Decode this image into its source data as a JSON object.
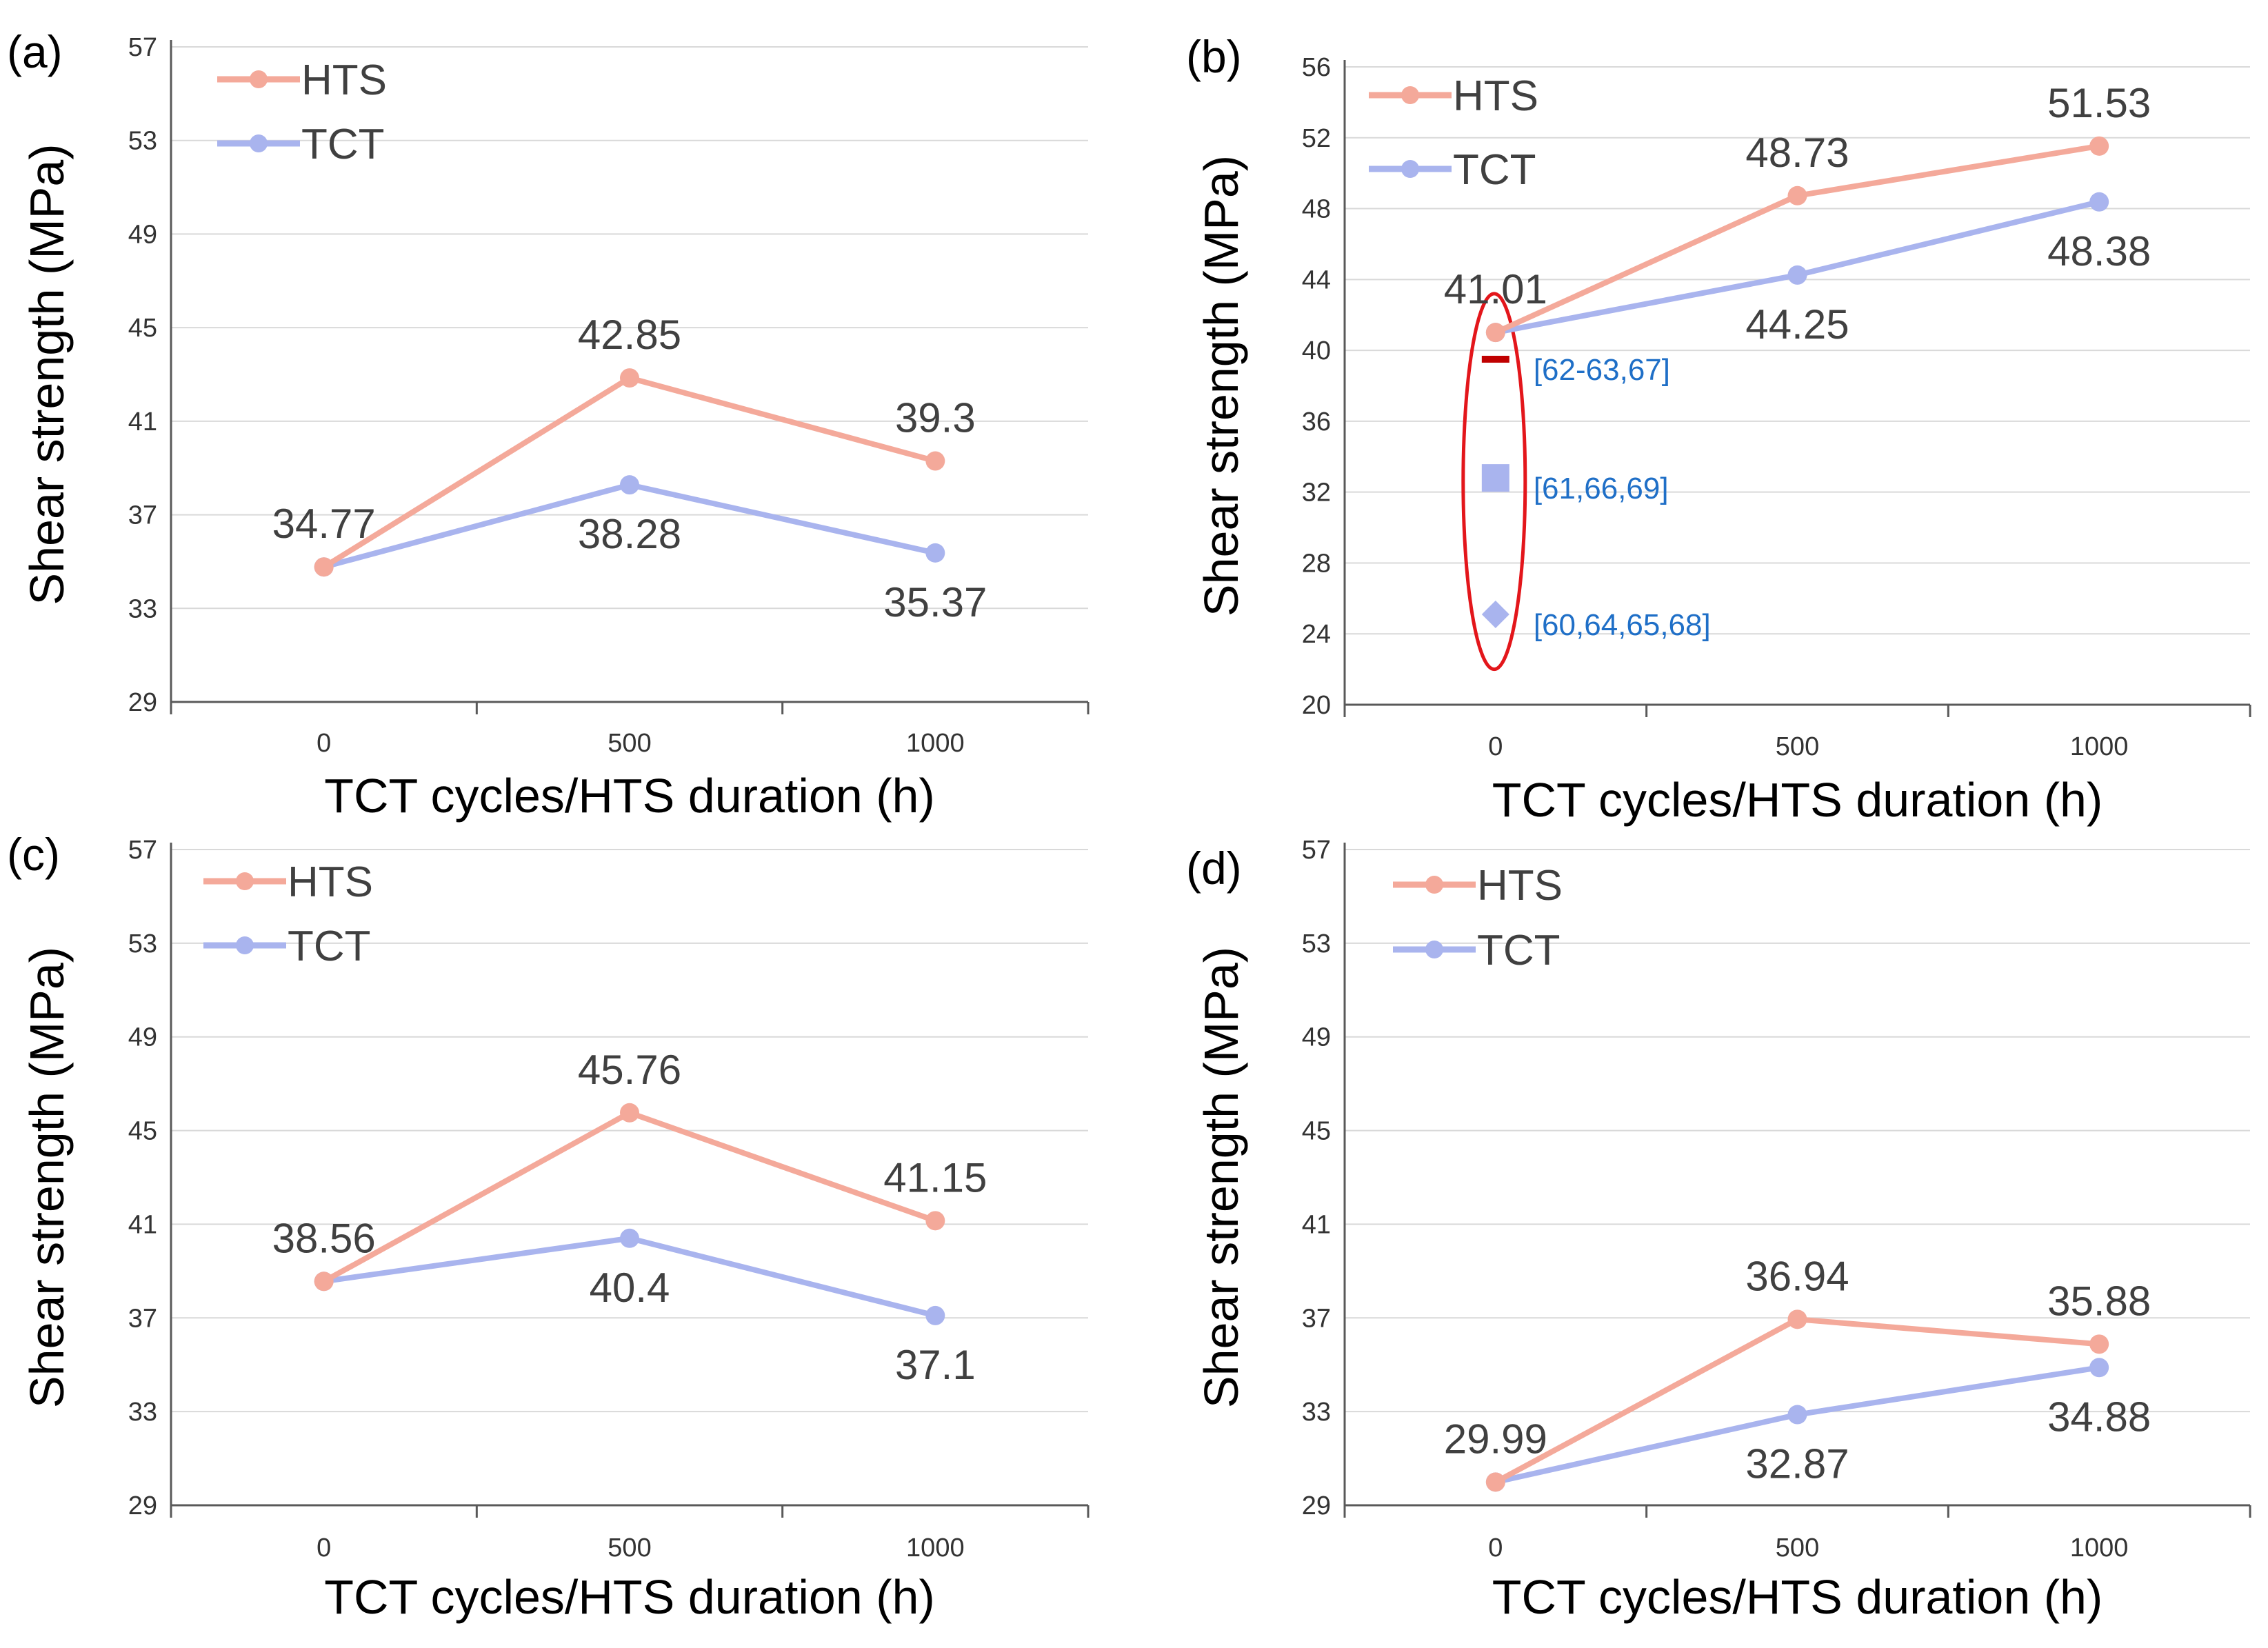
{
  "colors": {
    "hts": "#f4a99a",
    "tct": "#a9b4ee",
    "grid": "#d9d9d9",
    "axis": "#595959",
    "ellipse": "#e3161b",
    "ref_text": "#1f6fc7",
    "ref_dash": "#c00000"
  },
  "chart_data": [
    {
      "panel_label": "(a)",
      "type": "line",
      "xlabel": "TCT cycles/HTS duration (h)",
      "ylabel": "Shear strength (MPa)",
      "categories": [
        "0",
        "500",
        "1000"
      ],
      "ylim": [
        29,
        57
      ],
      "yticks": [
        29,
        33,
        37,
        41,
        45,
        49,
        53,
        57
      ],
      "legend_position": "top-left",
      "series": [
        {
          "name": "HTS",
          "color_key": "hts",
          "values": [
            34.77,
            42.85,
            39.3
          ],
          "labels": [
            "34.77",
            "42.85",
            "39.3"
          ],
          "label_pos": [
            "above",
            "above",
            "above"
          ]
        },
        {
          "name": "TCT",
          "color_key": "tct",
          "values": [
            34.77,
            38.28,
            35.37
          ],
          "labels": [
            "",
            "38.28",
            "35.37"
          ],
          "label_pos": [
            "below",
            "below",
            "below"
          ]
        }
      ]
    },
    {
      "panel_label": "(b)",
      "type": "line",
      "xlabel": "TCT cycles/HTS duration (h)",
      "ylabel": "Shear strength (MPa)",
      "categories": [
        "0",
        "500",
        "1000"
      ],
      "ylim": [
        20,
        56
      ],
      "yticks": [
        20,
        24,
        28,
        32,
        36,
        40,
        44,
        48,
        52,
        56
      ],
      "legend_position": "top-left",
      "series": [
        {
          "name": "HTS",
          "color_key": "hts",
          "values": [
            41.01,
            48.73,
            51.53
          ],
          "labels": [
            "41.01",
            "48.73",
            "51.53"
          ],
          "label_pos": [
            "above",
            "above",
            "above"
          ]
        },
        {
          "name": "TCT",
          "color_key": "tct",
          "values": [
            41.01,
            44.25,
            48.38
          ],
          "labels": [
            "",
            "44.25",
            "48.38"
          ],
          "label_pos": [
            "below",
            "below",
            "below"
          ]
        }
      ],
      "reference_points": [
        {
          "marker": "dash",
          "value": 39.5,
          "label": "[62-63,67]"
        },
        {
          "marker": "square",
          "value": 32.8,
          "label": "[61,66,69]"
        },
        {
          "marker": "diamond",
          "value": 25.1,
          "label": "[60,64,65,68]"
        }
      ]
    },
    {
      "panel_label": "(c)",
      "type": "line",
      "xlabel": "TCT cycles/HTS duration (h)",
      "ylabel": "Shear strength (MPa)",
      "categories": [
        "0",
        "500",
        "1000"
      ],
      "ylim": [
        29,
        57
      ],
      "yticks": [
        29,
        33,
        37,
        41,
        45,
        49,
        53,
        57
      ],
      "legend_position": "top-left",
      "series": [
        {
          "name": "HTS",
          "color_key": "hts",
          "values": [
            38.56,
            45.76,
            41.15
          ],
          "labels": [
            "38.56",
            "45.76",
            "41.15"
          ],
          "label_pos": [
            "above",
            "above",
            "above"
          ]
        },
        {
          "name": "TCT",
          "color_key": "tct",
          "values": [
            38.56,
            40.4,
            37.1
          ],
          "labels": [
            "",
            "40.4",
            "37.1"
          ],
          "label_pos": [
            "below",
            "below",
            "below"
          ]
        }
      ]
    },
    {
      "panel_label": "(d)",
      "type": "line",
      "xlabel": "TCT cycles/HTS duration (h)",
      "ylabel": "Shear strength (MPa)",
      "categories": [
        "0",
        "500",
        "1000"
      ],
      "ylim": [
        29,
        57
      ],
      "yticks": [
        29,
        33,
        37,
        41,
        45,
        49,
        53,
        57
      ],
      "legend_position": "top-left",
      "series": [
        {
          "name": "HTS",
          "color_key": "hts",
          "values": [
            29.99,
            36.94,
            35.88
          ],
          "labels": [
            "29.99",
            "36.94",
            "35.88"
          ],
          "label_pos": [
            "above",
            "above",
            "above"
          ]
        },
        {
          "name": "TCT",
          "color_key": "tct",
          "values": [
            29.99,
            32.87,
            34.88
          ],
          "labels": [
            "",
            "32.87",
            "34.88"
          ],
          "label_pos": [
            "below",
            "below",
            "below"
          ]
        }
      ]
    }
  ]
}
